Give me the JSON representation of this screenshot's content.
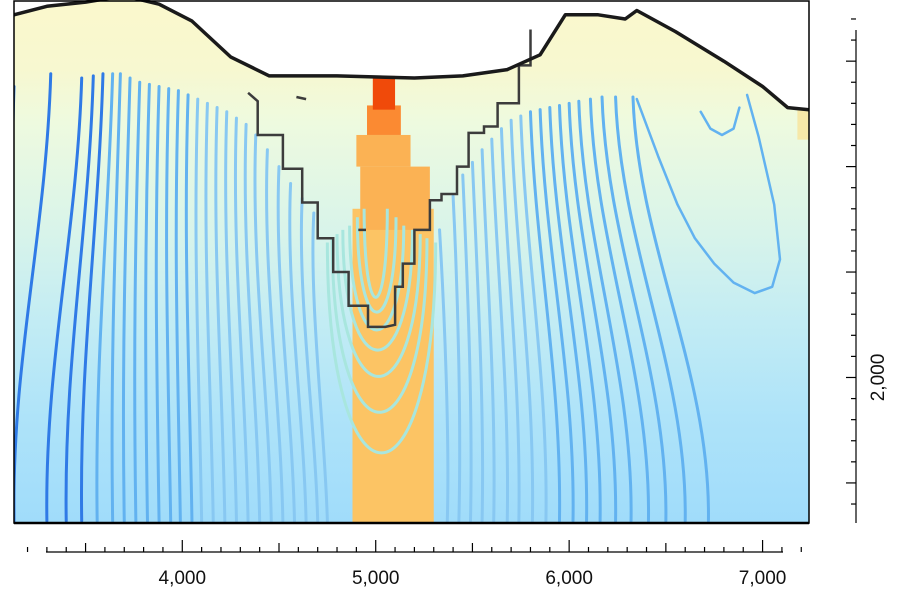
{
  "chart_data": {
    "type": "heatmap",
    "title": "",
    "xlabel": "",
    "ylabel": "",
    "xlim": [
      3130,
      7240
    ],
    "ylim": [
      1310,
      3790
    ],
    "x_ticks": [
      4000,
      5000,
      6000,
      7000
    ],
    "x_tick_labels": [
      "4,000",
      "5,000",
      "6,000",
      "7,000"
    ],
    "x_minor_step": 100,
    "x_medium_step": 500,
    "y_ticks": [
      2000
    ],
    "y_tick_labels": [
      "2,000"
    ],
    "y_minor_step": 100,
    "y_major_step": 500,
    "y_tick_label_rotated": true,
    "grid": false,
    "legend": "none",
    "colors": {
      "frame": "#000000",
      "terrain_line": "#1a1a1a",
      "excavation_line": "#3c3c3c",
      "contour_deep_blue": "#2f7ae6",
      "contour_mid_blue": "#62b2f0",
      "contour_light_blue": "#88c8f2",
      "contour_inner": "#a8e6de",
      "field_near_surface": "#fbf8cc",
      "field_upper": "#eefadf",
      "field_mid": "#cdf1ee",
      "field_lower": "#b2e6f8",
      "field_deep": "#a0dcfa",
      "core_hot": "#f04a0a",
      "core_warm": "#fb8a32",
      "core_mid": "#fbb254",
      "core_base": "#fcc464"
    },
    "terrain_surface": {
      "x": [
        3130,
        3300,
        3500,
        3700,
        3880,
        4050,
        4250,
        4450,
        4800,
        5200,
        5450,
        5680,
        5850,
        5980,
        6150,
        6290,
        6350,
        6550,
        6800,
        7000,
        7130,
        7240
      ],
      "y": [
        3720,
        3760,
        3780,
        3810,
        3770,
        3690,
        3520,
        3430,
        3430,
        3420,
        3430,
        3460,
        3530,
        3720,
        3720,
        3700,
        3740,
        3640,
        3500,
        3380,
        3280,
        3270
      ]
    },
    "excavation_boundary": {
      "x": [
        4340,
        4390,
        4390,
        4520,
        4520,
        4620,
        4620,
        4700,
        4700,
        4780,
        4780,
        4860,
        4860,
        4960,
        4960,
        5000,
        5050,
        5100,
        5100,
        5140,
        5140,
        5200,
        5200,
        5280,
        5280,
        5340,
        5340,
        5420,
        5420,
        5480,
        5480,
        5560,
        5560,
        5630,
        5630,
        5740,
        5740,
        5800,
        5800
      ],
      "y": [
        3350,
        3310,
        3150,
        3150,
        2990,
        2990,
        2830,
        2830,
        2660,
        2660,
        2500,
        2500,
        2340,
        2340,
        2240,
        2240,
        2240,
        2250,
        2430,
        2430,
        2540,
        2540,
        2700,
        2700,
        2840,
        2840,
        2870,
        2870,
        3000,
        3000,
        3160,
        3160,
        3190,
        3190,
        3300,
        3300,
        3480,
        3480,
        3650
      ]
    },
    "small_marks": [
      {
        "x": [
          4590,
          4640
        ],
        "y": [
          3330,
          3320
        ]
      },
      {
        "x": [
          4910,
          4950
        ],
        "y": [
          2700,
          2700
        ]
      }
    ],
    "core_blocks": [
      {
        "x": [
          4985,
          5100
        ],
        "y": [
          3270,
          3430
        ],
        "color_key": "core_hot"
      },
      {
        "x": [
          4955,
          5130
        ],
        "y": [
          3150,
          3290
        ],
        "color_key": "core_warm"
      },
      {
        "x": [
          4900,
          5180
        ],
        "y": [
          3000,
          3150
        ],
        "color_key": "core_mid"
      },
      {
        "x": [
          4920,
          5280
        ],
        "y": [
          2700,
          3000
        ],
        "color_key": "core_mid"
      },
      {
        "x": [
          4880,
          5300
        ],
        "y": [
          1300,
          2800
        ],
        "color_key": "core_base"
      }
    ],
    "inner_loops": [
      {
        "bottom": 2240,
        "top": 2800,
        "half_width": 60,
        "cx": 5000
      },
      {
        "bottom": 2160,
        "top": 2760,
        "half_width": 100,
        "cx": 5005
      },
      {
        "bottom": 2060,
        "top": 2720,
        "half_width": 140,
        "cx": 5005
      },
      {
        "bottom": 1940,
        "top": 2700,
        "half_width": 180,
        "cx": 5010
      },
      {
        "bottom": 1780,
        "top": 2680,
        "half_width": 215,
        "cx": 5015
      },
      {
        "bottom": 1560,
        "top": 2660,
        "half_width": 245,
        "cx": 5020
      },
      {
        "bottom": 1310,
        "top": 2640,
        "half_width": 280,
        "cx": 5030
      }
    ],
    "contours_left": [
      {
        "x_top": 3130,
        "y_top": 3380,
        "x_bottom": 3130,
        "color_key": "contour_deep_blue"
      },
      {
        "x_top": 3320,
        "y_top": 3440,
        "x_bottom": 3130,
        "color_key": "contour_deep_blue"
      },
      {
        "x_top": 3480,
        "y_top": 3420,
        "x_bottom": 3300,
        "color_key": "contour_deep_blue"
      },
      {
        "x_top": 3540,
        "y_top": 3430,
        "x_bottom": 3400,
        "color_key": "contour_deep_blue"
      },
      {
        "x_top": 3590,
        "y_top": 3440,
        "x_bottom": 3480,
        "color_key": "contour_deep_blue"
      },
      {
        "x_top": 3640,
        "y_top": 3440,
        "x_bottom": 3560,
        "color_key": "contour_mid_blue"
      },
      {
        "x_top": 3680,
        "y_top": 3440,
        "x_bottom": 3640,
        "color_key": "contour_mid_blue"
      },
      {
        "x_top": 3730,
        "y_top": 3420,
        "x_bottom": 3700,
        "color_key": "contour_mid_blue"
      },
      {
        "x_top": 3780,
        "y_top": 3400,
        "x_bottom": 3760,
        "color_key": "contour_mid_blue"
      },
      {
        "x_top": 3830,
        "y_top": 3390,
        "x_bottom": 3820,
        "color_key": "contour_mid_blue"
      },
      {
        "x_top": 3880,
        "y_top": 3380,
        "x_bottom": 3880,
        "color_key": "contour_mid_blue"
      },
      {
        "x_top": 3930,
        "y_top": 3370,
        "x_bottom": 3940,
        "color_key": "contour_mid_blue"
      },
      {
        "x_top": 3980,
        "y_top": 3360,
        "x_bottom": 3990,
        "color_key": "contour_mid_blue"
      },
      {
        "x_top": 4030,
        "y_top": 3340,
        "x_bottom": 4050,
        "color_key": "contour_mid_blue"
      },
      {
        "x_top": 4080,
        "y_top": 3320,
        "x_bottom": 4100,
        "color_key": "contour_light_blue"
      },
      {
        "x_top": 4130,
        "y_top": 3300,
        "x_bottom": 4160,
        "color_key": "contour_light_blue"
      },
      {
        "x_top": 4180,
        "y_top": 3280,
        "x_bottom": 4220,
        "color_key": "contour_light_blue"
      },
      {
        "x_top": 4230,
        "y_top": 3260,
        "x_bottom": 4280,
        "color_key": "contour_light_blue"
      },
      {
        "x_top": 4280,
        "y_top": 3230,
        "x_bottom": 4340,
        "color_key": "contour_light_blue"
      },
      {
        "x_top": 4330,
        "y_top": 3200,
        "x_bottom": 4400,
        "color_key": "contour_light_blue"
      },
      {
        "x_top": 4380,
        "y_top": 3150,
        "x_bottom": 4460,
        "color_key": "contour_light_blue"
      },
      {
        "x_top": 4440,
        "y_top": 3080,
        "x_bottom": 4520,
        "color_key": "contour_light_blue"
      },
      {
        "x_top": 4500,
        "y_top": 3000,
        "x_bottom": 4580,
        "color_key": "contour_light_blue"
      },
      {
        "x_top": 4560,
        "y_top": 2920,
        "x_bottom": 4640,
        "color_key": "contour_light_blue"
      },
      {
        "x_top": 4620,
        "y_top": 2850,
        "x_bottom": 4700,
        "color_key": "contour_light_blue"
      },
      {
        "x_top": 4680,
        "y_top": 2780,
        "x_bottom": 4750,
        "color_key": "contour_light_blue"
      }
    ],
    "contours_right": [
      {
        "x_top": 5330,
        "y_top": 2700,
        "x_bottom": 5370,
        "color_key": "contour_light_blue"
      },
      {
        "x_top": 5400,
        "y_top": 2860,
        "x_bottom": 5430,
        "color_key": "contour_light_blue"
      },
      {
        "x_top": 5450,
        "y_top": 2960,
        "x_bottom": 5490,
        "color_key": "contour_light_blue"
      },
      {
        "x_top": 5500,
        "y_top": 3020,
        "x_bottom": 5550,
        "color_key": "contour_light_blue"
      },
      {
        "x_top": 5550,
        "y_top": 3080,
        "x_bottom": 5610,
        "color_key": "contour_light_blue"
      },
      {
        "x_top": 5600,
        "y_top": 3130,
        "x_bottom": 5680,
        "color_key": "contour_light_blue"
      },
      {
        "x_top": 5650,
        "y_top": 3180,
        "x_bottom": 5740,
        "color_key": "contour_light_blue"
      },
      {
        "x_top": 5700,
        "y_top": 3220,
        "x_bottom": 5810,
        "color_key": "contour_light_blue"
      },
      {
        "x_top": 5750,
        "y_top": 3240,
        "x_bottom": 5880,
        "color_key": "contour_light_blue"
      },
      {
        "x_top": 5800,
        "y_top": 3260,
        "x_bottom": 5950,
        "color_key": "contour_mid_blue"
      },
      {
        "x_top": 5850,
        "y_top": 3270,
        "x_bottom": 6020,
        "color_key": "contour_mid_blue"
      },
      {
        "x_top": 5900,
        "y_top": 3280,
        "x_bottom": 6090,
        "color_key": "contour_mid_blue"
      },
      {
        "x_top": 5950,
        "y_top": 3290,
        "x_bottom": 6160,
        "color_key": "contour_mid_blue"
      },
      {
        "x_top": 6000,
        "y_top": 3300,
        "x_bottom": 6240,
        "color_key": "contour_mid_blue"
      },
      {
        "x_top": 6050,
        "y_top": 3310,
        "x_bottom": 6320,
        "color_key": "contour_mid_blue"
      },
      {
        "x_top": 6110,
        "y_top": 3320,
        "x_bottom": 6410,
        "color_key": "contour_mid_blue"
      },
      {
        "x_top": 6170,
        "y_top": 3330,
        "x_bottom": 6500,
        "color_key": "contour_mid_blue"
      },
      {
        "x_top": 6240,
        "y_top": 3330,
        "x_bottom": 6600,
        "color_key": "contour_mid_blue"
      },
      {
        "x_top": 6330,
        "y_top": 3330,
        "x_bottom": 6720,
        "color_key": "contour_mid_blue"
      }
    ],
    "right_curves": [
      {
        "x": [
          6350,
          6460,
          6560,
          6650,
          6750,
          6850,
          6960,
          7050,
          7090,
          7060,
          6980,
          6920
        ],
        "y": [
          3320,
          3050,
          2820,
          2660,
          2540,
          2450,
          2400,
          2430,
          2560,
          2820,
          3140,
          3340
        ],
        "color_key": "contour_mid_blue"
      },
      {
        "x": [
          6680,
          6730,
          6790,
          6850,
          6880
        ],
        "y": [
          3260,
          3180,
          3150,
          3180,
          3280
        ],
        "color_key": "contour_mid_blue"
      }
    ]
  }
}
